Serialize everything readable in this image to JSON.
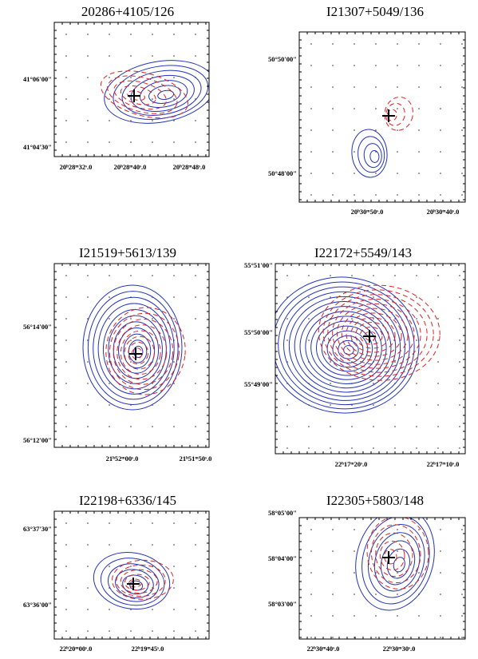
{
  "panels": [
    {
      "title": "20286+4105/126",
      "yticks": [
        "41°06'00\"",
        "41°04'30\""
      ],
      "xticks": [
        "20ʰ28ᵐ32ˢ.0",
        "20ʰ28ᵐ40ˢ.0",
        "20ʰ28ᵐ48ˢ.0"
      ]
    },
    {
      "title": "I21307+5049/136",
      "yticks": [
        "50°50'00\"",
        "50°48'00\""
      ],
      "xticks": [
        "20ʰ30ᵐ50ˢ.0",
        "20ʰ30ᵐ40ˢ.0"
      ]
    },
    {
      "title": "I21519+5613/139",
      "yticks": [
        "56°14'00\"",
        "56°12'00\""
      ],
      "xticks": [
        "21ʰ52ᵐ00ˢ.0",
        "21ʰ51ᵐ50ˢ.0"
      ]
    },
    {
      "title": "I22172+5549/143",
      "yticks": [
        "55°51'00\"",
        "55°50'00\"",
        "55°49'00\""
      ],
      "xticks": [
        "22ʰ17ᵐ20ˢ.0",
        "22ʰ17ᵐ10ˢ.0"
      ]
    },
    {
      "title": "I22198+6336/145",
      "yticks": [
        "63°37'30\"",
        "63°36'00\""
      ],
      "xticks": [
        "22ʰ20ᵐ00ˢ.0",
        "22ʰ19ᵐ45ˢ.0"
      ]
    },
    {
      "title": "I22305+5803/148",
      "yticks": [
        "58°05'00\"",
        "58°04'00\"",
        "58°03'00\""
      ],
      "xticks": [
        "22ʰ30ᵐ40ˢ.0",
        "22ʰ30ᵐ30ˢ.0"
      ]
    }
  ]
}
